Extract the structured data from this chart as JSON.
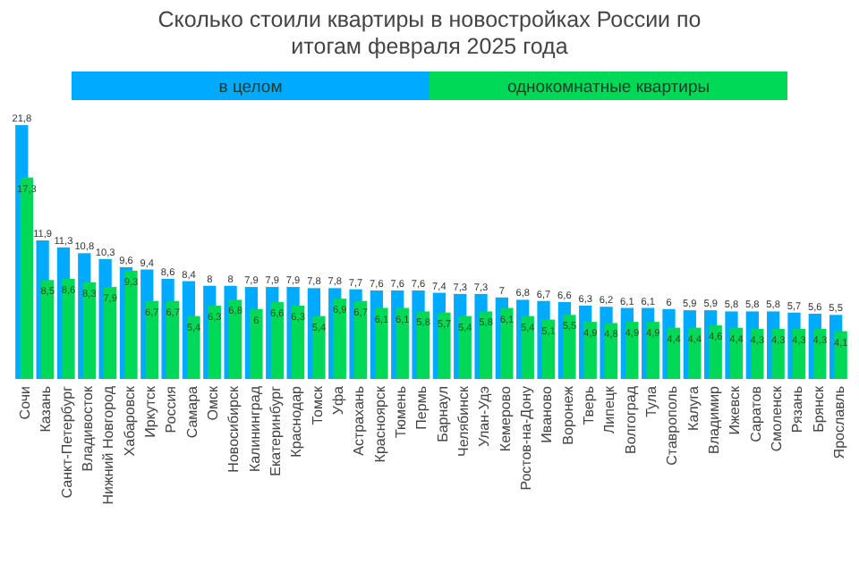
{
  "chart_data": {
    "type": "bar",
    "title": "Сколько стоили квартиры в новостройках России по итогам февраля 2025 года",
    "categories": [
      "Сочи",
      "Казань",
      "Санкт-Петербург",
      "Владивосток",
      "Нижний Новгород",
      "Хабаровск",
      "Иркутск",
      "Россия",
      "Самара",
      "Омск",
      "Новосибирск",
      "Калининград",
      "Екатеринбург",
      "Краснодар",
      "Томск",
      "Уфа",
      "Астрахань",
      "Красноярск",
      "Тюмень",
      "Пермь",
      "Барнаул",
      "Челябинск",
      "Улан-Удэ",
      "Кемерово",
      "Ростов-на-Дону",
      "Иваново",
      "Воронеж",
      "Тверь",
      "Липецк",
      "Волгоград",
      "Тула",
      "Ставрополь",
      "Калуга",
      "Владимир",
      "Ижевск",
      "Саратов",
      "Смоленск",
      "Рязань",
      "Брянск",
      "Ярославль"
    ],
    "series": [
      {
        "name": "в целом",
        "color": "#00aaff",
        "values": [
          21.8,
          11.9,
          11.3,
          10.8,
          10.3,
          9.6,
          9.4,
          8.6,
          8.4,
          8,
          8,
          7.9,
          7.9,
          7.9,
          7.8,
          7.8,
          7.7,
          7.6,
          7.6,
          7.6,
          7.4,
          7.3,
          7.3,
          7,
          6.8,
          6.7,
          6.6,
          6.3,
          6.2,
          6.1,
          6.1,
          6,
          5.9,
          5.9,
          5.8,
          5.8,
          5.8,
          5.7,
          5.6,
          5.5
        ],
        "value_labels": [
          "21,8",
          "11,9",
          "11,3",
          "10,8",
          "10,3",
          "9,6",
          "9,4",
          "8,6",
          "8,4",
          "8",
          "8",
          "7,9",
          "7,9",
          "7,9",
          "7,8",
          "7,8",
          "7,7",
          "7,6",
          "7,6",
          "7,6",
          "7,4",
          "7,3",
          "7,3",
          "7",
          "6,8",
          "6,7",
          "6,6",
          "6,3",
          "6,2",
          "6,1",
          "6,1",
          "6",
          "5,9",
          "5,9",
          "5,8",
          "5,8",
          "5,8",
          "5,7",
          "5,6",
          "5,5"
        ]
      },
      {
        "name": "однокомнатные квартиры",
        "color": "#00d957",
        "values": [
          17.3,
          8.5,
          8.6,
          8.3,
          7.9,
          9.3,
          6.7,
          6.7,
          5.4,
          6.3,
          6.8,
          6,
          6.6,
          6.3,
          5.4,
          6.9,
          6.7,
          6.1,
          6.1,
          5.8,
          5.7,
          5.4,
          5.8,
          6.1,
          5.4,
          5.1,
          5.5,
          4.9,
          4.8,
          4.9,
          4.9,
          4.4,
          4.4,
          4.6,
          4.4,
          4.3,
          4.3,
          4.3,
          4.3,
          4.1
        ],
        "value_labels": [
          "17,3",
          "8,5",
          "8,6",
          "8,3",
          "7,9",
          "9,3",
          "6,7",
          "6,7",
          "5,4",
          "6,3",
          "6,8",
          "6",
          "6,6",
          "6,3",
          "5,4",
          "6,9",
          "6,7",
          "6,1",
          "6,1",
          "5,8",
          "5,7",
          "5,4",
          "5,8",
          "6,1",
          "5,4",
          "5,1",
          "5,5",
          "4,9",
          "4,8",
          "4,9",
          "4,9",
          "4,4",
          "4,4",
          "4,6",
          "4,4",
          "4,3",
          "4,3",
          "4,3",
          "4,3",
          "4,1"
        ]
      }
    ],
    "legend": "top"
  }
}
